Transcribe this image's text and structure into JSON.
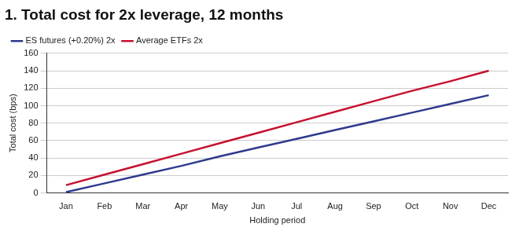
{
  "chart_data": {
    "type": "line",
    "title": "1. Total cost for 2x leverage, 12 months",
    "x_label": "Holding period",
    "y_label": "Total cost (bps)",
    "categories": [
      "Jan",
      "Feb",
      "Mar",
      "Apr",
      "May",
      "Jun",
      "Jul",
      "Aug",
      "Sep",
      "Oct",
      "Nov",
      "Dec"
    ],
    "series": [
      {
        "name": "ES futures (+0.20%) 2x",
        "color": "#2e3a8c",
        "values": [
          1,
          11,
          21,
          31,
          42,
          52,
          62,
          72,
          82,
          92,
          102,
          112
        ]
      },
      {
        "name": "Average ETFs 2x",
        "color": "#c8102e",
        "values": [
          9,
          21,
          33,
          45,
          57,
          69,
          81,
          93,
          105,
          117,
          128,
          140
        ]
      }
    ],
    "ylim": [
      0,
      160
    ],
    "yticks": [
      0,
      20,
      40,
      60,
      80,
      100,
      120,
      140,
      160
    ],
    "grid": true,
    "legend": "top-left"
  }
}
